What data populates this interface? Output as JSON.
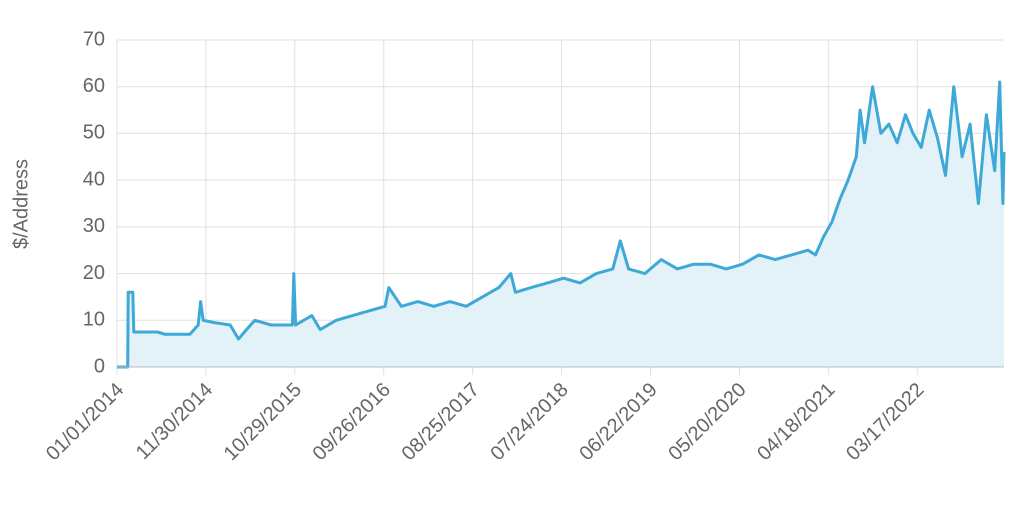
{
  "chart_data": {
    "type": "line",
    "y_label": "$/Address",
    "x": [
      "01/01/2014",
      "02/10/2014",
      "02/12/2014",
      "03/01/2014",
      "03/05/2014",
      "06/01/2014",
      "07/01/2014",
      "10/01/2014",
      "11/01/2014",
      "11/10/2014",
      "11/20/2014",
      "01/01/2015",
      "03/01/2015",
      "04/01/2015",
      "05/01/2015",
      "06/01/2015",
      "08/01/2015",
      "10/20/2015",
      "10/25/2015",
      "11/01/2015",
      "01/01/2016",
      "02/01/2016",
      "04/01/2016",
      "06/01/2016",
      "08/01/2016",
      "10/01/2016",
      "10/15/2016",
      "12/01/2016",
      "02/01/2017",
      "04/01/2017",
      "06/01/2017",
      "08/01/2017",
      "10/01/2017",
      "12/01/2017",
      "01/15/2018",
      "02/01/2018",
      "04/01/2018",
      "06/01/2018",
      "08/01/2018",
      "10/01/2018",
      "12/01/2018",
      "02/01/2019",
      "03/01/2019",
      "04/01/2019",
      "06/01/2019",
      "08/01/2019",
      "10/01/2019",
      "12/01/2019",
      "02/01/2020",
      "04/01/2020",
      "06/01/2020",
      "08/01/2020",
      "10/01/2020",
      "12/01/2020",
      "02/01/2021",
      "03/01/2021",
      "04/01/2021",
      "05/01/2021",
      "06/01/2021",
      "07/01/2021",
      "08/01/2021",
      "08/15/2021",
      "09/01/2021",
      "10/01/2021",
      "11/01/2021",
      "12/01/2021",
      "01/01/2022",
      "02/01/2022",
      "03/01/2022",
      "04/01/2022",
      "05/01/2022",
      "06/01/2022",
      "07/01/2022",
      "08/01/2022",
      "09/01/2022",
      "10/01/2022",
      "11/01/2022",
      "12/01/2022",
      "01/01/2023",
      "01/20/2023",
      "02/01/2023",
      "02/05/2023"
    ],
    "series": [
      {
        "name": "$/Address",
        "color": "#3ea8d6",
        "fill": "#e3f1f8",
        "values": [
          0,
          0,
          16,
          16,
          7.5,
          7.5,
          7,
          7,
          9,
          14,
          10,
          9.5,
          9,
          6,
          8,
          10,
          9,
          9,
          20,
          9,
          11,
          8,
          10,
          11,
          12,
          13,
          17,
          13,
          14,
          13,
          14,
          13,
          15,
          17,
          20,
          16,
          17,
          18,
          19,
          18,
          20,
          21,
          27,
          21,
          20,
          23,
          21,
          22,
          22,
          21,
          22,
          24,
          23,
          24,
          25,
          24,
          28,
          31,
          36,
          40,
          45,
          55,
          48,
          60,
          50,
          52,
          48,
          54,
          50,
          47,
          55,
          49,
          41,
          60,
          45,
          52,
          35,
          54,
          42,
          61,
          35,
          46
        ]
      }
    ],
    "xlim": [
      "01/01/2014",
      "02/05/2023"
    ],
    "xticks": [
      "01/01/2014",
      "11/30/2014",
      "10/29/2015",
      "09/26/2016",
      "08/25/2017",
      "07/24/2018",
      "06/22/2019",
      "05/20/2020",
      "04/18/2021",
      "03/17/2022"
    ],
    "ylim": [
      0,
      70
    ],
    "yticks": [
      0,
      10,
      20,
      30,
      40,
      50,
      60,
      70
    ],
    "grid": true
  }
}
